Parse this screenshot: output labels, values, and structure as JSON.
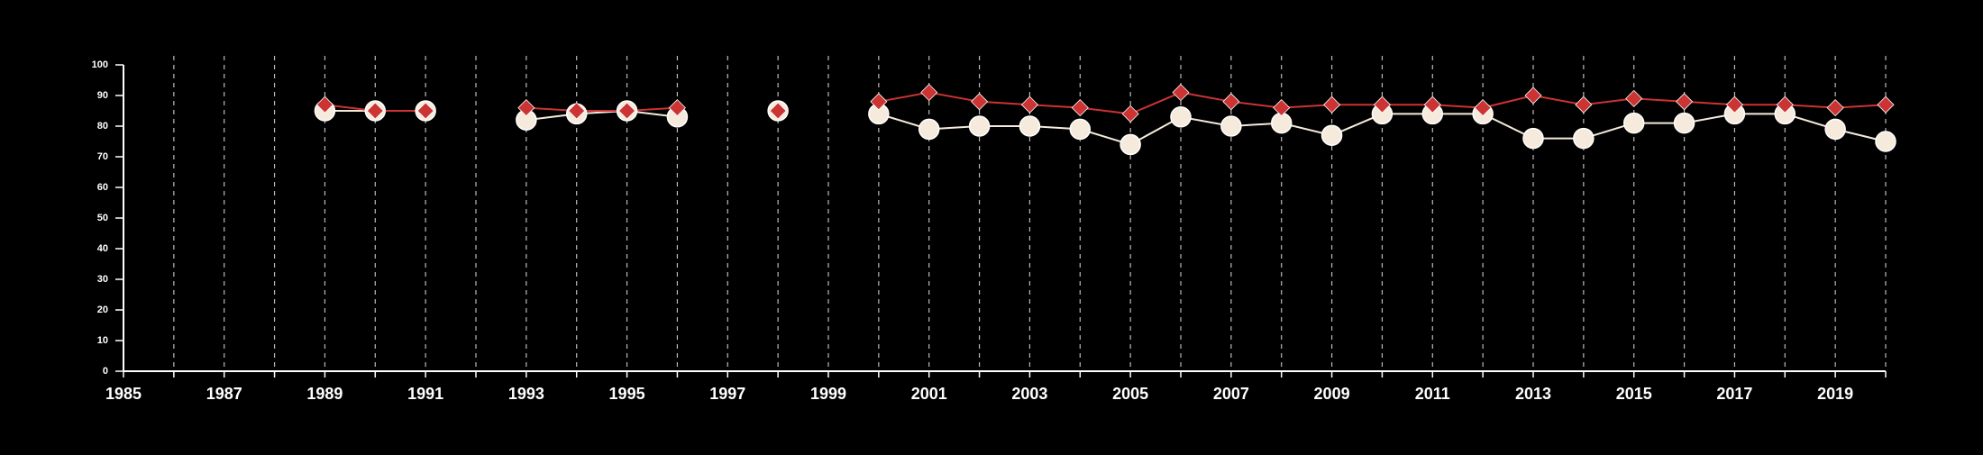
{
  "chart_data": {
    "type": "line",
    "title": "",
    "xlabel": "",
    "ylabel": "",
    "xlim": [
      1985,
      2020
    ],
    "ylim": [
      0,
      100
    ],
    "y_ticks": [
      0,
      10,
      20,
      30,
      40,
      50,
      60,
      70,
      80,
      90,
      100
    ],
    "x_ticks": [
      1985,
      1987,
      1989,
      1991,
      1993,
      1995,
      1997,
      1999,
      2001,
      2003,
      2005,
      2007,
      2009,
      2011,
      2013,
      2015,
      2017,
      2019
    ],
    "x_minor_ticks": [
      1986,
      1988,
      1990,
      1992,
      1994,
      1996,
      1998,
      2000,
      2002,
      2004,
      2006,
      2008,
      2010,
      2012,
      2014,
      2016,
      2018,
      2020
    ],
    "grid": "vertical dashed lines at every year from 1986 to 2020",
    "background_color": "#000000",
    "series": [
      {
        "color": "#f5eadb",
        "marker": "circle",
        "points": [
          [
            1989,
            85
          ],
          [
            1990,
            85
          ],
          [
            1991,
            85
          ],
          [
            1993,
            82
          ],
          [
            1994,
            84
          ],
          [
            1995,
            85
          ],
          [
            1996,
            83
          ],
          [
            1998,
            85
          ],
          [
            2000,
            84
          ],
          [
            2001,
            79
          ],
          [
            2002,
            80
          ],
          [
            2003,
            80
          ],
          [
            2004,
            79
          ],
          [
            2005,
            74
          ],
          [
            2006,
            83
          ],
          [
            2007,
            80
          ],
          [
            2008,
            81
          ],
          [
            2009,
            77
          ],
          [
            2010,
            84
          ],
          [
            2011,
            84
          ],
          [
            2012,
            84
          ],
          [
            2013,
            76
          ],
          [
            2014,
            76
          ],
          [
            2015,
            81
          ],
          [
            2016,
            81
          ],
          [
            2017,
            84
          ],
          [
            2018,
            84
          ],
          [
            2019,
            79
          ],
          [
            2020,
            75
          ]
        ]
      },
      {
        "color": "#cc3333",
        "marker": "diamond",
        "points": [
          [
            1989,
            87
          ],
          [
            1990,
            85
          ],
          [
            1991,
            85
          ],
          [
            1993,
            86
          ],
          [
            1994,
            85
          ],
          [
            1995,
            85
          ],
          [
            1996,
            86
          ],
          [
            1998,
            85
          ],
          [
            2000,
            88
          ],
          [
            2001,
            91
          ],
          [
            2002,
            88
          ],
          [
            2003,
            87
          ],
          [
            2004,
            86
          ],
          [
            2005,
            84
          ],
          [
            2006,
            91
          ],
          [
            2007,
            88
          ],
          [
            2008,
            86
          ],
          [
            2009,
            87
          ],
          [
            2010,
            87
          ],
          [
            2011,
            87
          ],
          [
            2012,
            86
          ],
          [
            2013,
            90
          ],
          [
            2014,
            87
          ],
          [
            2015,
            89
          ],
          [
            2016,
            88
          ],
          [
            2017,
            87
          ],
          [
            2018,
            87
          ],
          [
            2019,
            86
          ],
          [
            2020,
            87
          ]
        ]
      }
    ]
  }
}
